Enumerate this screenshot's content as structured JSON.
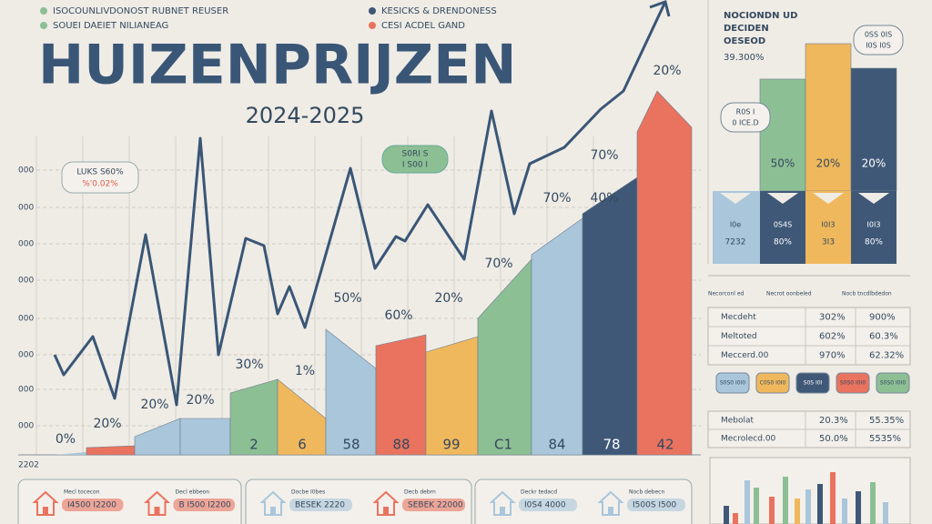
{
  "header": {
    "title": "HUIZENPRIJZEN",
    "subtitle": "2024-2025",
    "legend": [
      "ISOCOUNLIVDONOST RUBNET REUSER",
      "SOUEI DAEIET NILIANEAG",
      "KESICKS & DRENDONESS",
      "CESI ACDEL GAND"
    ]
  },
  "main": {
    "axis_labels": [
      "000",
      "000",
      "000",
      "000",
      "000",
      "000",
      "000",
      "000"
    ],
    "corner": "2202",
    "top_labels": [
      "0%",
      "20%",
      "20%",
      "20%",
      "30%",
      "1%",
      "50%",
      "60%",
      "20%",
      "70%",
      "70%",
      "40%",
      "70%",
      "20%"
    ],
    "bottom_labels": [
      "2",
      "6",
      "58",
      "88",
      "99",
      "C1",
      "84",
      "78",
      "42"
    ],
    "callouts": [
      [
        "LUKS S60%",
        "%'0.02%"
      ],
      [
        "S0RI S",
        "I S00 I"
      ]
    ]
  },
  "side": {
    "heading": [
      "NOCIONDN UD",
      "DECIDEN",
      "OESEOD"
    ],
    "figure": "39.300%",
    "bar_labels": [
      "50%",
      "20%",
      "20%"
    ],
    "strip": [
      [
        "I0e",
        "7232"
      ],
      [
        "0S4S",
        "80%"
      ],
      [
        "I0I3",
        "3I3"
      ],
      [
        "I0I3",
        "80%"
      ]
    ],
    "bubbles": [
      [
        "R0S I",
        "0 ICE.D"
      ],
      [
        "0SS 0IS",
        "I0S I0S"
      ]
    ],
    "headers": [
      "Necorconl ed",
      "Necrot oonbeled",
      "Nocb tncdlbdedon"
    ],
    "table1": [
      [
        "Mecdeht",
        "302%",
        "900%"
      ],
      [
        "Meltoted",
        "602%",
        "60.3%"
      ],
      [
        "Meccerd.00",
        "970%",
        "62.32%"
      ]
    ],
    "chips": [
      "S0S0 I0I0",
      "C0S0 I0I0",
      "S0S I0I",
      "S0S0 I0I0",
      "S0S0 I0I0"
    ],
    "table2": [
      [
        "Mebolat",
        "20.3%",
        "55.35%"
      ],
      [
        "Mecrolecd.00",
        "50.0%",
        "5535%"
      ]
    ]
  },
  "footer": {
    "cards": [
      [
        "Mecl tocecon",
        "I4500 I2200",
        "Decl ebbeon",
        "B I500 I2200"
      ],
      [
        "Docbe I0bes",
        "BESEK 2220",
        "Decb debrn",
        "SEBEK 22000"
      ],
      [
        "Deckr tedacd",
        "I0S4 4000",
        "Nocb debecn",
        "I500S I500"
      ]
    ]
  }
}
